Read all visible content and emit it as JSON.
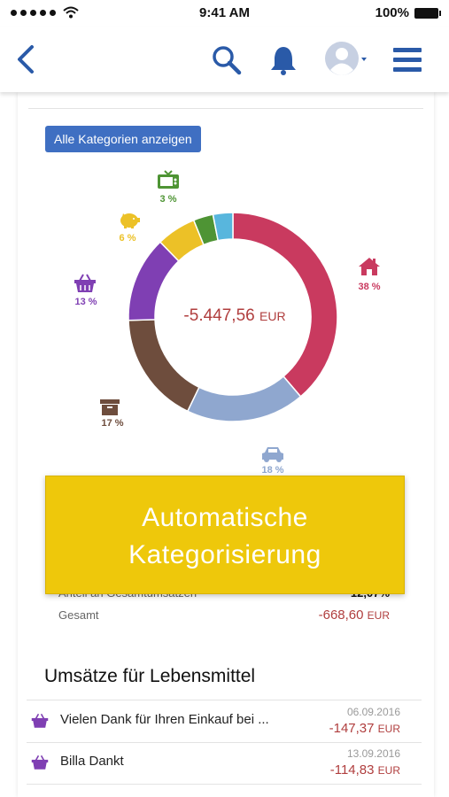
{
  "status_bar": {
    "time": "9:41 AM",
    "battery": "100%"
  },
  "nav": {
    "back_icon": "chevron-left-icon",
    "search_icon": "search-icon",
    "bell_icon": "bell-icon",
    "avatar_icon": "user-avatar-icon",
    "menu_icon": "hamburger-menu-icon",
    "accent_color": "#2a5aa8"
  },
  "chart": {
    "button_label": "Alle Kategorien anzeigen",
    "total": "-5.447,56",
    "total_currency": "EUR",
    "labels": [
      {
        "icon": "home-icon",
        "pct": "38 %",
        "color": "#c93a5f"
      },
      {
        "icon": "car-icon",
        "pct": "18 %",
        "color": "#8fa7cf"
      },
      {
        "icon": "archive-box-icon",
        "pct": "17 %",
        "color": "#6e4d3d"
      },
      {
        "icon": "shopping-basket-icon",
        "pct": "13 %",
        "color": "#7f3fb3"
      },
      {
        "icon": "piggy-bank-icon",
        "pct": "6 %",
        "color": "#ecc127"
      },
      {
        "icon": "tv-icon",
        "pct": "3 %",
        "color": "#4e9434"
      }
    ]
  },
  "chart_data": {
    "type": "pie",
    "series": [
      {
        "name": "",
        "values": [
          38,
          18,
          17,
          13,
          6,
          3,
          3
        ]
      }
    ],
    "colors": [
      "#c93a5f",
      "#8fa7cf",
      "#6e4d3d",
      "#7f3fb3",
      "#ecc127",
      "#4e9434",
      "#58b6dd"
    ]
  },
  "overlay": {
    "line1": "Automatische",
    "line2": "Kategorisierung"
  },
  "summary": {
    "share_label": "Anteil an Gesamtumsätzen",
    "share_value": "12,07%",
    "total_label": "Gesamt",
    "total_value": "-668,60",
    "total_currency": "EUR"
  },
  "transactions": {
    "title": "Umsätze für Lebensmittel",
    "items": [
      {
        "text": "Vielen Dank für Ihren Einkauf bei ...",
        "date": "06.09.2016",
        "amount": "-147,37",
        "currency": "EUR",
        "icon": "shopping-basket-icon"
      },
      {
        "text": "Billa Dankt",
        "date": "13.09.2016",
        "amount": "-114,83",
        "currency": "EUR",
        "icon": "shopping-basket-icon"
      }
    ]
  }
}
